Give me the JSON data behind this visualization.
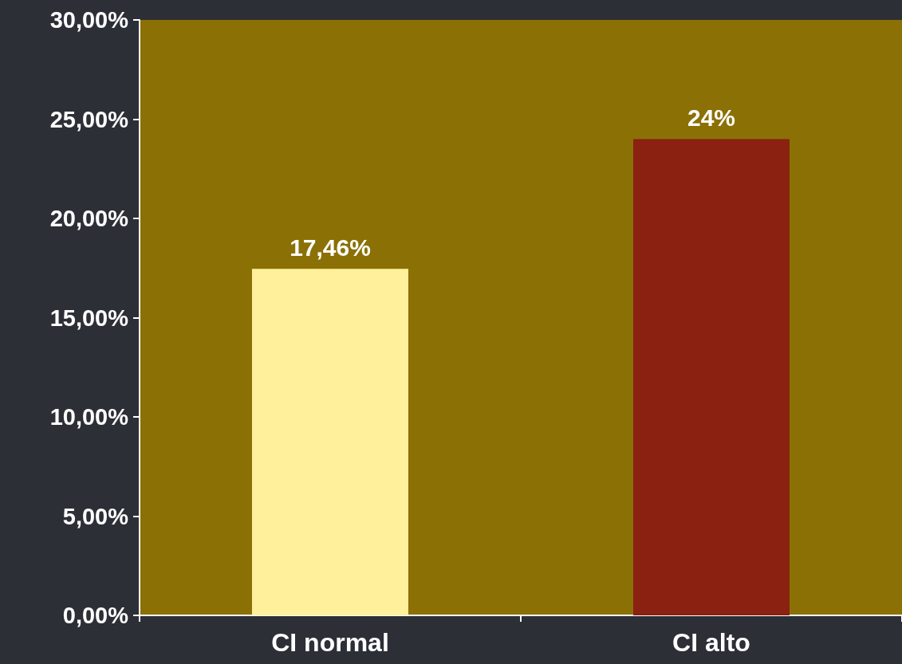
{
  "chart_data": {
    "type": "bar",
    "categories": [
      "CI normal",
      "CI alto"
    ],
    "values": [
      17.46,
      24
    ],
    "colors": [
      "#fff09b",
      "#8a2111"
    ],
    "value_labels": [
      "17,46%",
      "24%"
    ],
    "ylim": [
      0,
      30
    ],
    "yticks": [
      {
        "value": 0,
        "label": "0,00%"
      },
      {
        "value": 5,
        "label": "5,00%"
      },
      {
        "value": 10,
        "label": "10,00%"
      },
      {
        "value": 15,
        "label": "15,00%"
      },
      {
        "value": 20,
        "label": "20,00%"
      },
      {
        "value": 25,
        "label": "25,00%"
      },
      {
        "value": 30,
        "label": "30,00%"
      }
    ],
    "grid": false
  }
}
